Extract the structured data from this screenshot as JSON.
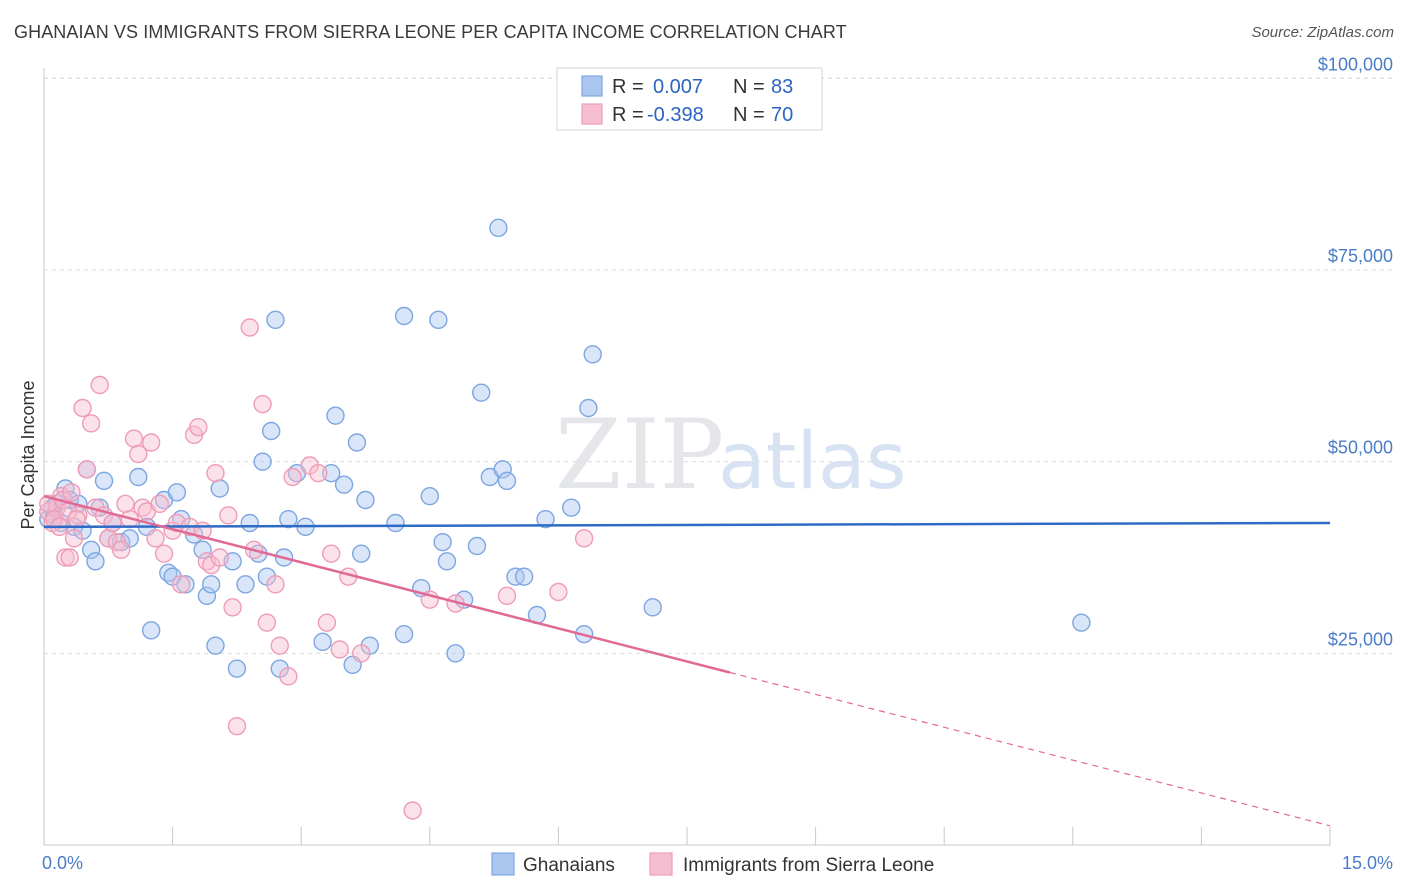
{
  "chart_data": {
    "type": "scatter",
    "title": "GHANAIAN VS IMMIGRANTS FROM SIERRA LEONE PER CAPITA INCOME CORRELATION CHART",
    "source": "Source: ZipAtlas.com",
    "watermark": {
      "zip": "ZIP",
      "atlas": "atlas"
    },
    "ylabel": "Per Capita Income",
    "xlim": [
      0,
      15
    ],
    "ylim": [
      0,
      105000
    ],
    "x_tick_labels": {
      "left": "0.0%",
      "right": "15.0%"
    },
    "y_ticks": [
      {
        "value": 25000,
        "label": "$25,000"
      },
      {
        "value": 50000,
        "label": "$50,000"
      },
      {
        "value": 75000,
        "label": "$75,000"
      },
      {
        "value": 100000,
        "label": "$100,000"
      }
    ],
    "stats": [
      {
        "r_label": "R =",
        "r_value": "0.007",
        "n_label": "N =",
        "n_value": "83"
      },
      {
        "r_label": "R =",
        "r_value": "-0.398",
        "n_label": "N =",
        "n_value": "70"
      }
    ],
    "series": [
      {
        "name": "Ghanaians",
        "color": "#7ea6e0",
        "fill": "#aac6ef",
        "line_color": "#2f6ac6",
        "trend": {
          "x0": 0,
          "y0": 41500,
          "x1": 15,
          "y1": 42000
        },
        "points": [
          [
            0.05,
            42500
          ],
          [
            0.1,
            44000
          ],
          [
            0.12,
            43000
          ],
          [
            0.15,
            44500
          ],
          [
            0.2,
            42000
          ],
          [
            0.25,
            46500
          ],
          [
            0.3,
            45000
          ],
          [
            0.35,
            41500
          ],
          [
            0.4,
            44500
          ],
          [
            0.5,
            49000
          ],
          [
            0.55,
            38500
          ],
          [
            0.6,
            37000
          ],
          [
            0.7,
            47500
          ],
          [
            0.75,
            40000
          ],
          [
            0.8,
            42000
          ],
          [
            0.9,
            39500
          ],
          [
            1.1,
            48000
          ],
          [
            1.2,
            41500
          ],
          [
            1.25,
            28000
          ],
          [
            1.4,
            45000
          ],
          [
            1.45,
            35500
          ],
          [
            1.5,
            35000
          ],
          [
            1.55,
            46000
          ],
          [
            1.6,
            42500
          ],
          [
            1.65,
            34000
          ],
          [
            1.85,
            38500
          ],
          [
            1.9,
            32500
          ],
          [
            1.95,
            34000
          ],
          [
            2.0,
            26000
          ],
          [
            2.05,
            46500
          ],
          [
            2.2,
            37000
          ],
          [
            2.25,
            23000
          ],
          [
            2.35,
            34000
          ],
          [
            2.4,
            42000
          ],
          [
            2.5,
            38000
          ],
          [
            2.55,
            50000
          ],
          [
            2.6,
            35000
          ],
          [
            2.65,
            54000
          ],
          [
            2.7,
            68500
          ],
          [
            2.75,
            23000
          ],
          [
            2.85,
            42500
          ],
          [
            2.95,
            48500
          ],
          [
            3.05,
            41500
          ],
          [
            3.25,
            26500
          ],
          [
            3.35,
            48500
          ],
          [
            3.4,
            56000
          ],
          [
            3.5,
            47000
          ],
          [
            3.6,
            23500
          ],
          [
            3.65,
            52500
          ],
          [
            3.7,
            38000
          ],
          [
            3.75,
            45000
          ],
          [
            3.8,
            26000
          ],
          [
            4.1,
            42000
          ],
          [
            4.2,
            27500
          ],
          [
            4.2,
            69000
          ],
          [
            4.4,
            33500
          ],
          [
            4.5,
            45500
          ],
          [
            4.6,
            68500
          ],
          [
            4.65,
            39500
          ],
          [
            4.7,
            37000
          ],
          [
            4.8,
            25000
          ],
          [
            4.9,
            32000
          ],
          [
            5.05,
            39000
          ],
          [
            5.1,
            59000
          ],
          [
            5.2,
            48000
          ],
          [
            5.3,
            80500
          ],
          [
            5.35,
            49000
          ],
          [
            5.4,
            47500
          ],
          [
            5.5,
            35000
          ],
          [
            5.6,
            35000
          ],
          [
            5.75,
            30000
          ],
          [
            5.85,
            42500
          ],
          [
            6.15,
            44000
          ],
          [
            6.3,
            27500
          ],
          [
            6.35,
            57000
          ],
          [
            6.4,
            64000
          ],
          [
            7.1,
            31000
          ],
          [
            12.1,
            29000
          ],
          [
            0.45,
            41000
          ],
          [
            0.65,
            44000
          ],
          [
            1.0,
            40000
          ],
          [
            1.75,
            40500
          ],
          [
            2.8,
            37500
          ]
        ]
      },
      {
        "name": "Immigrants from Sierra Leone",
        "color": "#ee9cb8",
        "fill": "#f6bfd1",
        "line_color": "#e06a95",
        "trend": {
          "x0": 0,
          "y0": 45500,
          "x1": 8,
          "y1": 22500
        },
        "trend_dashed": {
          "x0": 8,
          "y0": 22500,
          "x1": 15,
          "y1": 2500
        },
        "points": [
          [
            0.05,
            43500
          ],
          [
            0.1,
            42000
          ],
          [
            0.15,
            44000
          ],
          [
            0.2,
            45500
          ],
          [
            0.25,
            37500
          ],
          [
            0.3,
            37500
          ],
          [
            0.35,
            40000
          ],
          [
            0.4,
            43000
          ],
          [
            0.45,
            57000
          ],
          [
            0.5,
            49000
          ],
          [
            0.55,
            55000
          ],
          [
            0.6,
            44000
          ],
          [
            0.65,
            60000
          ],
          [
            0.7,
            43000
          ],
          [
            0.75,
            40000
          ],
          [
            0.8,
            42000
          ],
          [
            0.85,
            39500
          ],
          [
            0.9,
            38500
          ],
          [
            0.95,
            44500
          ],
          [
            1.0,
            42500
          ],
          [
            1.05,
            53000
          ],
          [
            1.1,
            51000
          ],
          [
            1.15,
            44000
          ],
          [
            1.2,
            43500
          ],
          [
            1.25,
            52500
          ],
          [
            1.3,
            40000
          ],
          [
            1.35,
            44500
          ],
          [
            1.4,
            38000
          ],
          [
            1.5,
            41000
          ],
          [
            1.55,
            42000
          ],
          [
            1.6,
            34000
          ],
          [
            1.7,
            41500
          ],
          [
            1.75,
            53500
          ],
          [
            1.8,
            54500
          ],
          [
            1.85,
            41000
          ],
          [
            1.9,
            37000
          ],
          [
            1.95,
            36500
          ],
          [
            2.0,
            48500
          ],
          [
            2.05,
            37500
          ],
          [
            2.15,
            43000
          ],
          [
            2.2,
            31000
          ],
          [
            2.25,
            15500
          ],
          [
            2.4,
            67500
          ],
          [
            2.45,
            38500
          ],
          [
            2.55,
            57500
          ],
          [
            2.6,
            29000
          ],
          [
            2.7,
            34000
          ],
          [
            2.75,
            26000
          ],
          [
            2.85,
            22000
          ],
          [
            2.9,
            48000
          ],
          [
            3.1,
            49500
          ],
          [
            3.2,
            48500
          ],
          [
            3.3,
            29000
          ],
          [
            3.35,
            38000
          ],
          [
            3.45,
            25500
          ],
          [
            3.55,
            35000
          ],
          [
            3.7,
            25000
          ],
          [
            4.3,
            4500
          ],
          [
            4.5,
            32000
          ],
          [
            4.8,
            31500
          ],
          [
            5.4,
            32500
          ],
          [
            6.0,
            33000
          ],
          [
            6.3,
            40000
          ],
          [
            0.05,
            44500
          ],
          [
            0.12,
            42500
          ],
          [
            0.18,
            41500
          ],
          [
            0.22,
            45000
          ],
          [
            0.28,
            43500
          ],
          [
            0.32,
            46000
          ],
          [
            0.38,
            42500
          ]
        ]
      }
    ]
  },
  "legend": {
    "bottom": [
      "Ghanaians",
      "Immigrants from Sierra Leone"
    ]
  }
}
